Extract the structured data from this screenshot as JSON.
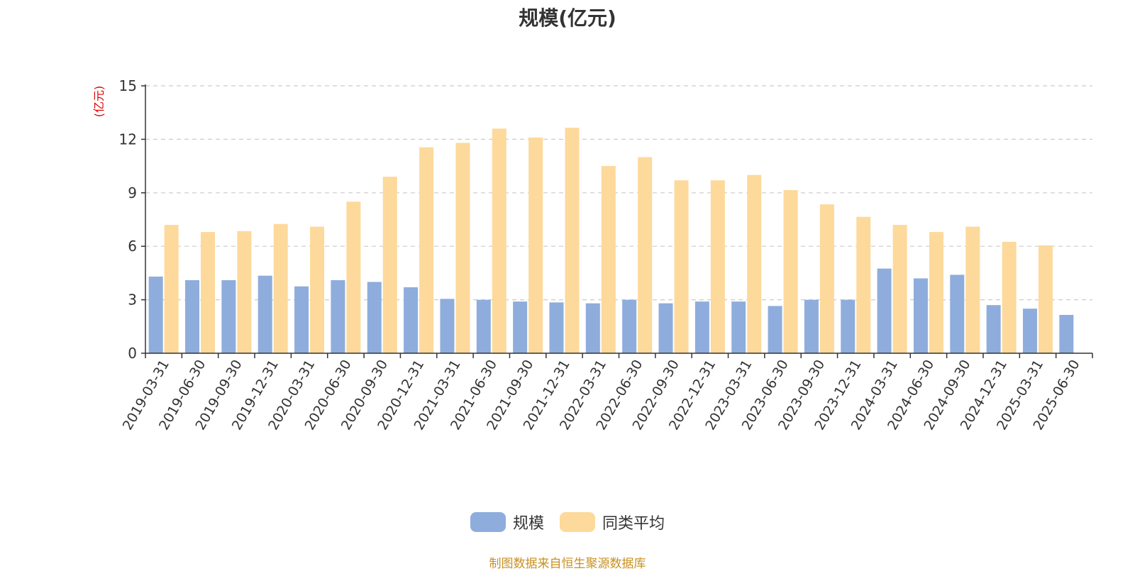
{
  "colors": {
    "series_1": "#8eaddc",
    "series_2": "#fdd99b",
    "unit": "#e00000",
    "source": "#c89120",
    "grid": "#cccccc",
    "axis": "#333333"
  },
  "chart_data": {
    "type": "bar",
    "title": "规模(亿元)",
    "unit_label": "(亿元)",
    "categories": [
      "2019-03-31",
      "2019-06-30",
      "2019-09-30",
      "2019-12-31",
      "2020-03-31",
      "2020-06-30",
      "2020-09-30",
      "2020-12-31",
      "2021-03-31",
      "2021-06-30",
      "2021-09-30",
      "2021-12-31",
      "2022-03-31",
      "2022-06-30",
      "2022-09-30",
      "2022-12-31",
      "2023-03-31",
      "2023-06-30",
      "2023-09-30",
      "2023-12-31",
      "2024-03-31",
      "2024-06-30",
      "2024-09-30",
      "2024-12-31",
      "2025-03-31",
      "2025-06-30"
    ],
    "series": [
      {
        "name": "规模",
        "values": [
          4.3,
          4.1,
          4.1,
          4.35,
          3.75,
          4.1,
          4.0,
          3.7,
          3.05,
          3.0,
          2.9,
          2.85,
          2.8,
          3.0,
          2.8,
          2.9,
          2.9,
          2.65,
          3.0,
          3.0,
          4.75,
          4.2,
          4.4,
          2.7,
          2.5,
          2.15
        ]
      },
      {
        "name": "同类平均",
        "values": [
          7.2,
          6.8,
          6.85,
          7.25,
          7.1,
          8.5,
          9.9,
          11.55,
          11.8,
          12.6,
          12.1,
          12.65,
          10.5,
          11.0,
          9.7,
          9.7,
          10.0,
          9.15,
          8.35,
          7.65,
          7.2,
          6.8,
          7.1,
          6.25,
          6.05,
          null
        ]
      }
    ],
    "yticks": [
      0,
      3,
      6,
      9,
      12,
      15
    ],
    "ylim": [
      0,
      15
    ],
    "grid": true,
    "legend_position": "bottom-center"
  },
  "source_note": "制图数据来自恒生聚源数据库"
}
